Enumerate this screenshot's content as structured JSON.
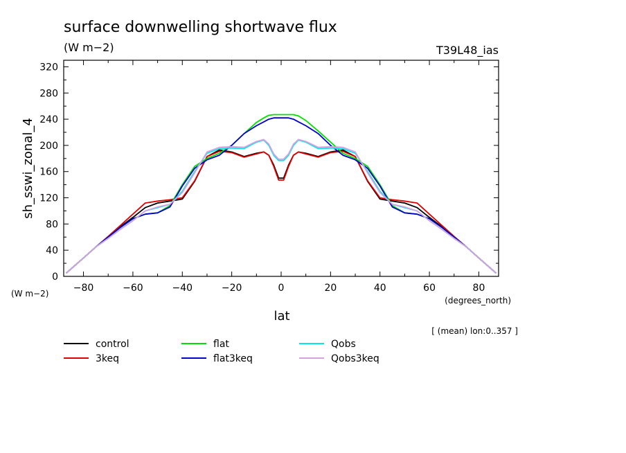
{
  "chart_data": {
    "type": "line",
    "title": "surface downwelling shortwave flux",
    "subtitle": "(W m−2)",
    "experiment": "T39L48_ias",
    "ylabel": "sh_sswi_zonal_4",
    "yunit": "(W m−2)",
    "xlabel": "lat",
    "xunit": "(degrees_north)",
    "note": "[ (mean) lon:0..357 ]",
    "xlim": [
      -88,
      88
    ],
    "ylim": [
      0,
      330
    ],
    "xticks": [
      -80,
      -60,
      -40,
      -20,
      0,
      20,
      40,
      60,
      80
    ],
    "xtick_labels": [
      "−80",
      "−60",
      "−40",
      "−20",
      "0",
      "20",
      "40",
      "60",
      "80"
    ],
    "yticks": [
      0,
      40,
      80,
      120,
      160,
      200,
      240,
      280,
      320
    ],
    "grid": false,
    "legend_position": "bottom",
    "x": [
      -87,
      -80,
      -75,
      -70,
      -65,
      -60,
      -55,
      -50,
      -45,
      -40,
      -35,
      -30,
      -25,
      -20,
      -15,
      -10,
      -7,
      -5,
      -3,
      -1,
      1,
      3,
      5,
      7,
      10,
      15,
      20,
      25,
      30,
      35,
      40,
      45,
      50,
      55,
      60,
      65,
      70,
      75,
      80,
      87
    ],
    "series": [
      {
        "name": "control",
        "color": "#000000",
        "values": [
          5,
          28,
          45,
          60,
          76,
          90,
          105,
          112,
          115,
          118,
          145,
          183,
          193,
          190,
          183,
          188,
          190,
          185,
          170,
          150,
          150,
          170,
          185,
          190,
          188,
          183,
          190,
          193,
          183,
          145,
          118,
          115,
          112,
          105,
          90,
          76,
          60,
          45,
          28,
          5
        ]
      },
      {
        "name": "3keq",
        "color": "#e00000",
        "values": [
          5,
          28,
          45,
          61,
          78,
          95,
          112,
          115,
          117,
          120,
          146,
          183,
          191,
          189,
          182,
          187,
          190,
          185,
          168,
          147,
          147,
          168,
          185,
          190,
          187,
          182,
          189,
          191,
          183,
          146,
          120,
          117,
          115,
          112,
          95,
          78,
          61,
          45,
          28,
          5
        ]
      },
      {
        "name": "flat",
        "color": "#00e000",
        "values": [
          5,
          28,
          45,
          60,
          75,
          88,
          95,
          97,
          108,
          140,
          168,
          180,
          188,
          200,
          218,
          235,
          242,
          246,
          247,
          247,
          247,
          247,
          247,
          245,
          238,
          222,
          205,
          188,
          180,
          168,
          140,
          108,
          97,
          95,
          88,
          75,
          60,
          45,
          28,
          5
        ]
      },
      {
        "name": "flat3keq",
        "color": "#0000cc",
        "values": [
          5,
          28,
          45,
          60,
          75,
          88,
          95,
          97,
          106,
          138,
          165,
          178,
          185,
          200,
          218,
          230,
          236,
          240,
          242,
          242,
          242,
          242,
          240,
          236,
          230,
          218,
          200,
          185,
          178,
          165,
          138,
          106,
          97,
          95,
          88,
          75,
          60,
          45,
          28,
          5
        ]
      },
      {
        "name": "Qobs",
        "color": "#00e8e8",
        "values": [
          5,
          28,
          45,
          58,
          72,
          85,
          100,
          105,
          110,
          130,
          160,
          188,
          195,
          196,
          195,
          205,
          208,
          200,
          185,
          177,
          177,
          185,
          200,
          208,
          205,
          195,
          196,
          195,
          188,
          160,
          130,
          110,
          105,
          100,
          85,
          72,
          58,
          45,
          28,
          5
        ]
      },
      {
        "name": "Qobs3keq",
        "color": "#d8a0e0",
        "values": [
          5,
          28,
          45,
          58,
          72,
          85,
          100,
          106,
          110,
          128,
          158,
          190,
          197,
          198,
          197,
          206,
          209,
          202,
          187,
          179,
          179,
          187,
          202,
          209,
          206,
          197,
          198,
          197,
          190,
          158,
          128,
          110,
          106,
          100,
          85,
          72,
          58,
          45,
          28,
          5
        ]
      }
    ]
  }
}
